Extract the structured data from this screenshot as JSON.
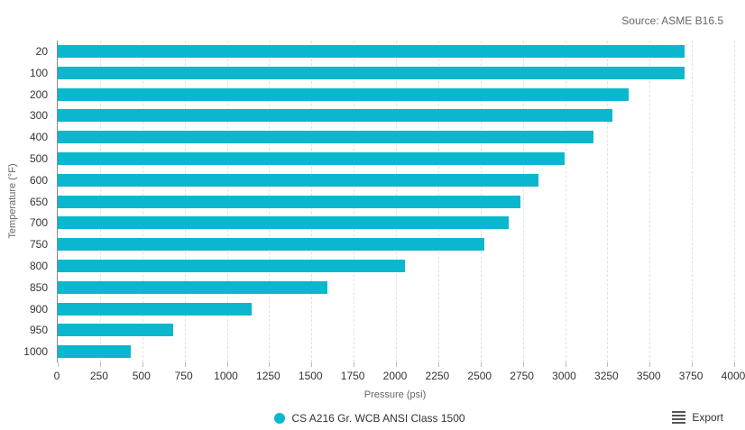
{
  "source_note": "Source: ASME B16.5",
  "legend": {
    "series_label": "CS A216 Gr. WCB ANSI Class 1500"
  },
  "export": {
    "label": "Export",
    "icon": "hamburger-menu-icon"
  },
  "colors": {
    "bar": "#0bb7cd",
    "gridline": "#e2e2e2",
    "axis_line": "#888888",
    "tick_label": "#333333",
    "muted_text": "#666666"
  },
  "chart_data": {
    "type": "bar",
    "orientation": "horizontal",
    "title": "",
    "categories": [
      "20",
      "100",
      "200",
      "300",
      "400",
      "500",
      "600",
      "650",
      "700",
      "750",
      "800",
      "850",
      "900",
      "950",
      "1000"
    ],
    "series": [
      {
        "name": "CS A216 Gr. WCB ANSI Class 1500",
        "values": [
          3705,
          3705,
          3375,
          3280,
          3170,
          2995,
          2840,
          2735,
          2665,
          2520,
          2055,
          1595,
          1145,
          685,
          430
        ]
      }
    ],
    "xlabel": "Pressure (psi)",
    "ylabel": "Temperature (°F)",
    "xlim": [
      0,
      4000
    ],
    "x_ticks": [
      0,
      250,
      500,
      750,
      1000,
      1250,
      1500,
      1750,
      2000,
      2250,
      2500,
      2750,
      3000,
      3250,
      3500,
      3750,
      4000
    ],
    "grid": "dashed-vertical-gridlines",
    "legend_position": "bottom-center",
    "source": "ASME B16.5"
  }
}
